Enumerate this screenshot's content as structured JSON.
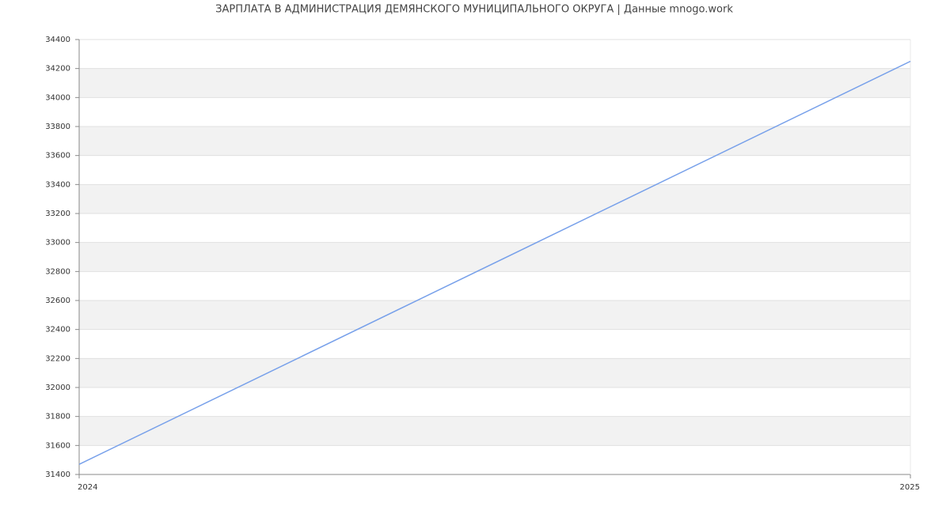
{
  "chart_data": {
    "type": "line",
    "title": "ЗАРПЛАТА В АДМИНИСТРАЦИЯ ДЕМЯНСКОГО МУНИЦИПАЛЬНОГО ОКРУГА | Данные mnogo.work",
    "x": [
      2024,
      2025
    ],
    "series": [
      {
        "color": "#77a0ea",
        "values": [
          31470,
          34250
        ]
      }
    ],
    "xlim": [
      2024,
      2025
    ],
    "xticks": [
      2024,
      2025
    ],
    "ylim": [
      31400,
      34400
    ],
    "yticks": [
      31400,
      31600,
      31800,
      32000,
      32200,
      32400,
      32600,
      32800,
      33000,
      33200,
      33400,
      33600,
      33800,
      34000,
      34200,
      34400
    ],
    "grid": true
  }
}
